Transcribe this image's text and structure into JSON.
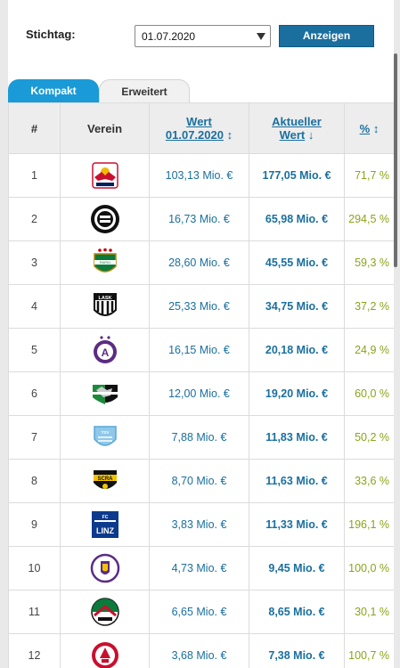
{
  "filter": {
    "stichtag_label": "Stichtag:",
    "date_value": "01.07.2020",
    "button_label": "Anzeigen"
  },
  "tabs": [
    {
      "label": "Kompakt",
      "active": true
    },
    {
      "label": "Erweitert",
      "active": false
    }
  ],
  "table": {
    "headers": {
      "rank": "#",
      "verein": "Verein",
      "wert_line1": "Wert",
      "wert_line2": "01.07.2020",
      "wert_sort": "↕",
      "aktuell_line1": "Aktueller",
      "aktuell_line2": "Wert",
      "aktuell_sort": "↓",
      "pct": "%",
      "pct_sort": "↕"
    },
    "rows": [
      {
        "rank": "1",
        "logo": "red-bull-salzburg-crest",
        "wert": "103,13 Mio. €",
        "aktuell": "177,05 Mio. €",
        "pct": "71,7 %"
      },
      {
        "rank": "2",
        "logo": "sk-sturm-graz-crest",
        "wert": "16,73 Mio. €",
        "aktuell": "65,98 Mio. €",
        "pct": "294,5 %"
      },
      {
        "rank": "3",
        "logo": "sk-rapid-wien-crest",
        "wert": "28,60 Mio. €",
        "aktuell": "45,55 Mio. €",
        "pct": "59,3 %"
      },
      {
        "rank": "4",
        "logo": "lask-crest",
        "wert": "25,33 Mio. €",
        "aktuell": "34,75 Mio. €",
        "pct": "37,2 %"
      },
      {
        "rank": "5",
        "logo": "fk-austria-wien-crest",
        "wert": "16,15 Mio. €",
        "aktuell": "20,18 Mio. €",
        "pct": "24,9 %"
      },
      {
        "rank": "6",
        "logo": "wolfsberger-ac-crest",
        "wert": "12,00 Mio. €",
        "aktuell": "19,20 Mio. €",
        "pct": "60,0 %"
      },
      {
        "rank": "7",
        "logo": "tsv-hartberg-crest",
        "wert": "7,88 Mio. €",
        "aktuell": "11,83 Mio. €",
        "pct": "50,2 %"
      },
      {
        "rank": "8",
        "logo": "scr-altach-crest",
        "wert": "8,70 Mio. €",
        "aktuell": "11,63 Mio. €",
        "pct": "33,6 %"
      },
      {
        "rank": "9",
        "logo": "fc-blau-weiss-linz-crest",
        "wert": "3,83 Mio. €",
        "aktuell": "11,33 Mio. €",
        "pct": "196,1 %"
      },
      {
        "rank": "10",
        "logo": "austria-klagenfurt-crest",
        "wert": "4,73 Mio. €",
        "aktuell": "9,45 Mio. €",
        "pct": "100,0 %"
      },
      {
        "rank": "11",
        "logo": "wsg-tirol-crest",
        "wert": "6,65 Mio. €",
        "aktuell": "8,65 Mio. €",
        "pct": "30,1 %"
      },
      {
        "rank": "12",
        "logo": "gak-crest",
        "wert": "3,68 Mio. €",
        "aktuell": "7,38 Mio. €",
        "pct": "100,7 %"
      }
    ]
  },
  "colors": {
    "accent_blue": "#1a6f9f",
    "tab_active": "#1a9ad6",
    "positive_green": "#8aa41b"
  }
}
